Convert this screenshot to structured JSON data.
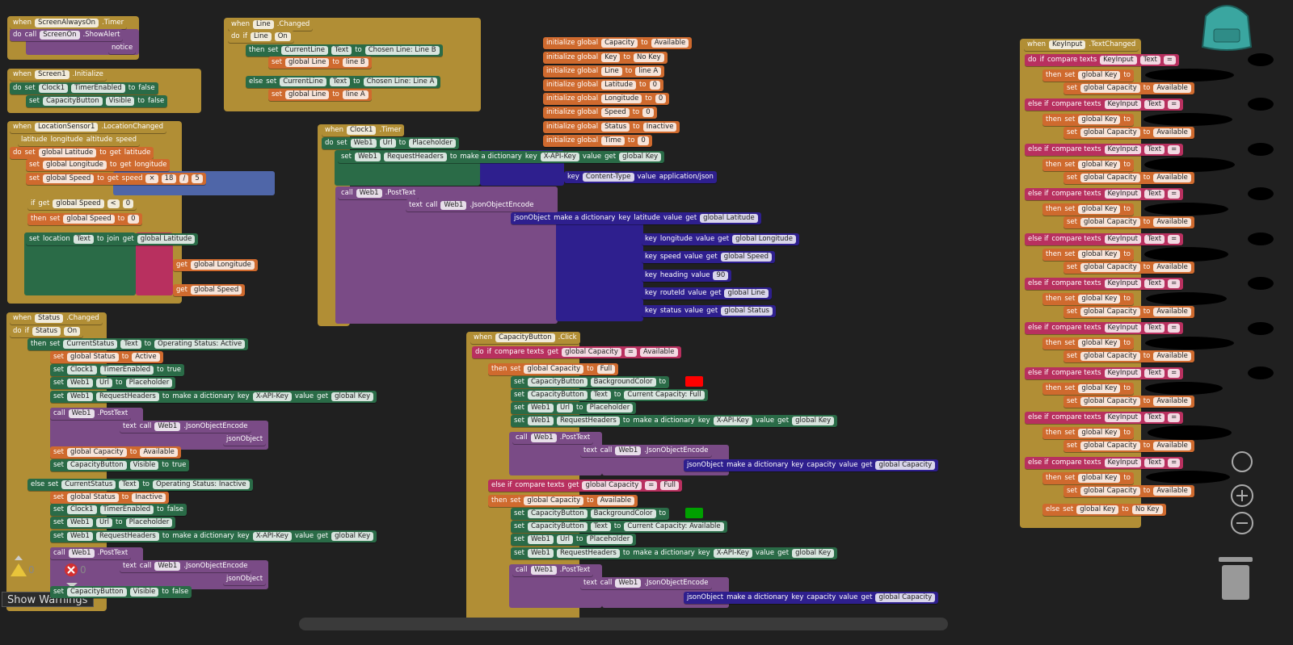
{
  "workspace": {
    "blocks": [
      {
        "lines": [
          [
            "when",
            "ScreenAlwaysOn",
            ".Timer"
          ],
          [
            "do",
            "call",
            "ScreenOn",
            ".ShowAlert"
          ],
          [
            "notice"
          ]
        ]
      },
      {
        "lines": [
          [
            "when",
            "Screen1",
            ".Initialize"
          ],
          [
            "do",
            "set",
            "Clock1",
            "TimerEnabled",
            "to",
            "false"
          ],
          [
            "set",
            "CapacityButton",
            "Visible",
            "to",
            "false"
          ]
        ]
      },
      {
        "lines": [
          [
            "when",
            "LocationSensor1",
            ".LocationChanged"
          ],
          [
            "latitude",
            "longitude",
            "altitude",
            "speed"
          ],
          [
            "do",
            "set",
            "global Latitude",
            "to",
            "get",
            "latitude"
          ],
          [
            "set",
            "global Longitude",
            "to",
            "get",
            "longitude"
          ],
          [
            "set",
            "global Speed",
            "to",
            "get",
            "speed",
            "×",
            "18",
            "/",
            "5"
          ],
          [
            "if",
            "get",
            "global Speed",
            "<",
            "0"
          ],
          [
            "then",
            "set",
            "global Speed",
            "to",
            "0"
          ],
          [
            "set",
            "location",
            "Text",
            "to",
            "join",
            "get",
            "global Latitude"
          ],
          [
            "get",
            "global Longitude"
          ],
          [
            "get",
            "global Speed"
          ]
        ]
      },
      {
        "lines": [
          [
            "when",
            "Status",
            ".Changed"
          ],
          [
            "do",
            "if",
            "Status",
            "On"
          ],
          [
            "then",
            "set",
            "CurrentStatus",
            "Text",
            "to",
            "Operating Status: Active"
          ],
          [
            "set",
            "global Status",
            "to",
            "Active"
          ],
          [
            "set",
            "Clock1",
            "TimerEnabled",
            "to",
            "true"
          ],
          [
            "set",
            "Web1",
            "Url",
            "to",
            "Placeholder"
          ],
          [
            "set",
            "Web1",
            "RequestHeaders",
            "to",
            "make a dictionary",
            "key",
            "X-API-Key",
            "value",
            "get",
            "global Key"
          ],
          [
            "call",
            "Web1",
            ".PostText"
          ],
          [
            "text",
            "call",
            "Web1",
            ".JsonObjectEncode"
          ],
          [
            "jsonObject"
          ],
          [
            "set",
            "global Capacity",
            "to",
            "Available"
          ],
          [
            "set",
            "CapacityButton",
            "Visible",
            "to",
            "true"
          ],
          [
            "else",
            "set",
            "CurrentStatus",
            "Text",
            "to",
            "Operating Status: Inactive"
          ],
          [
            "set",
            "global Status",
            "to",
            "Inactive"
          ],
          [
            "set",
            "Clock1",
            "TimerEnabled",
            "to",
            "false"
          ],
          [
            "set",
            "Web1",
            "Url",
            "to",
            "Placeholder"
          ],
          [
            "set",
            "Web1",
            "RequestHeaders",
            "to",
            "make a dictionary",
            "key",
            "X-API-Key",
            "value",
            "get",
            "global Key"
          ],
          [
            "call",
            "Web1",
            ".PostText"
          ],
          [
            "text",
            "call",
            "Web1",
            ".JsonObjectEncode"
          ],
          [
            "jsonObject"
          ],
          [
            "set",
            "CapacityButton",
            "Visible",
            "to",
            "false"
          ]
        ]
      },
      {
        "lines": [
          [
            "when",
            "Line",
            ".Changed"
          ],
          [
            "do",
            "if",
            "Line",
            "On"
          ],
          [
            "then",
            "set",
            "CurrentLine",
            "Text",
            "to",
            "Chosen Line: Line B"
          ],
          [
            "set",
            "global Line",
            "to",
            "line B"
          ],
          [
            "else",
            "set",
            "CurrentLine",
            "Text",
            "to",
            "Chosen Line: Line A"
          ],
          [
            "set",
            "global Line",
            "to",
            "line A"
          ]
        ]
      },
      {
        "lines": [
          [
            "initialize global",
            "Capacity",
            "to",
            "Available"
          ],
          [
            "initialize global",
            "Key",
            "to",
            "No Key"
          ],
          [
            "initialize global",
            "Line",
            "to",
            "line A"
          ],
          [
            "initialize global",
            "Latitude",
            "to",
            "0"
          ],
          [
            "initialize global",
            "Longitude",
            "to",
            "0"
          ],
          [
            "initialize global",
            "Speed",
            "to",
            "0"
          ],
          [
            "initialize global",
            "Status",
            "to",
            "Inactive"
          ],
          [
            "initialize global",
            "Time",
            "to",
            "0"
          ]
        ]
      },
      {
        "lines": [
          [
            "when",
            "Clock1",
            ".Timer"
          ],
          [
            "do",
            "set",
            "Web1",
            "Url",
            "to",
            "Placeholder"
          ],
          [
            "set",
            "Web1",
            "RequestHeaders",
            "to",
            "make a dictionary",
            "key",
            "X-API-Key",
            "value",
            "get",
            "global Key"
          ],
          [
            "key",
            "Content-Type",
            "value",
            "application/json"
          ],
          [
            "call",
            "Web1",
            ".PostText"
          ],
          [
            "text",
            "call",
            "Web1",
            ".JsonObjectEncode"
          ],
          [
            "jsonObject",
            "make a dictionary",
            "key",
            "latitude",
            "value",
            "get",
            "global Latitude"
          ],
          [
            "key",
            "longitude",
            "value",
            "get",
            "global Longitude"
          ],
          [
            "key",
            "speed",
            "value",
            "get",
            "global Speed"
          ],
          [
            "key",
            "heading",
            "value",
            "90"
          ],
          [
            "key",
            "routeId",
            "value",
            "get",
            "global Line"
          ],
          [
            "key",
            "status",
            "value",
            "get",
            "global Status"
          ]
        ]
      },
      {
        "lines": [
          [
            "when",
            "CapacityButton",
            ".Click"
          ],
          [
            "do",
            "if",
            "compare texts",
            "get",
            "global Capacity",
            "=",
            "Available"
          ],
          [
            "then",
            "set",
            "global Capacity",
            "to",
            "Full"
          ],
          [
            "set",
            "CapacityButton",
            "BackgroundColor",
            "to"
          ],
          [
            "set",
            "CapacityButton",
            "Text",
            "to",
            "Current Capacity: Full"
          ],
          [
            "set",
            "Web1",
            "Url",
            "to",
            "Placeholder"
          ],
          [
            "set",
            "Web1",
            "RequestHeaders",
            "to",
            "make a dictionary",
            "key",
            "X-API-Key",
            "value",
            "get",
            "global Key"
          ],
          [
            "call",
            "Web1",
            ".PostText"
          ],
          [
            "text",
            "call",
            "Web1",
            ".JsonObjectEncode"
          ],
          [
            "jsonObject",
            "make a dictionary",
            "key",
            "capacity",
            "value",
            "get",
            "global Capacity"
          ],
          [
            "else if",
            "compare texts",
            "get",
            "global Capacity",
            "=",
            "Full"
          ],
          [
            "then",
            "set",
            "global Capacity",
            "to",
            "Available"
          ],
          [
            "set",
            "CapacityButton",
            "BackgroundColor",
            "to"
          ],
          [
            "set",
            "CapacityButton",
            "Text",
            "to",
            "Current Capacity: Available"
          ],
          [
            "set",
            "Web1",
            "Url",
            "to",
            "Placeholder"
          ],
          [
            "set",
            "Web1",
            "RequestHeaders",
            "to",
            "make a dictionary",
            "key",
            "X-API-Key",
            "value",
            "get",
            "global Key"
          ],
          [
            "call",
            "Web1",
            ".PostText"
          ],
          [
            "text",
            "call",
            "Web1",
            ".JsonObjectEncode"
          ],
          [
            "jsonObject",
            "make a dictionary",
            "key",
            "capacity",
            "value",
            "get",
            "global Capacity"
          ]
        ]
      },
      {
        "lines": [
          [
            "when",
            "KeyInput",
            ".TextChanged"
          ],
          [
            "do",
            "if",
            "compare texts",
            "KeyInput",
            "Text",
            "="
          ],
          [
            "then",
            "set",
            "global Key",
            "to"
          ],
          [
            "set",
            "global Capacity",
            "to",
            "Available"
          ],
          [
            "else if",
            "compare texts",
            "KeyInput",
            "Text",
            "="
          ],
          [
            "then",
            "set",
            "global Key",
            "to"
          ],
          [
            "set",
            "global Capacity",
            "to",
            "Available"
          ],
          [
            "else if",
            "compare texts",
            "KeyInput",
            "Text",
            "="
          ],
          [
            "then",
            "set",
            "global Key",
            "to"
          ],
          [
            "set",
            "global Capacity",
            "to",
            "Available"
          ],
          [
            "else if",
            "compare texts",
            "KeyInput",
            "Text",
            "="
          ],
          [
            "then",
            "set",
            "global Key",
            "to"
          ],
          [
            "set",
            "global Capacity",
            "to",
            "Available"
          ],
          [
            "else if",
            "compare texts",
            "KeyInput",
            "Text",
            "="
          ],
          [
            "then",
            "set",
            "global Key",
            "to"
          ],
          [
            "set",
            "global Capacity",
            "to",
            "Available"
          ],
          [
            "else if",
            "compare texts",
            "KeyInput",
            "Text",
            "="
          ],
          [
            "then",
            "set",
            "global Key",
            "to"
          ],
          [
            "set",
            "global Capacity",
            "to",
            "Available"
          ],
          [
            "else if",
            "compare texts",
            "KeyInput",
            "Text",
            "="
          ],
          [
            "then",
            "set",
            "global Key",
            "to"
          ],
          [
            "set",
            "global Capacity",
            "to",
            "Available"
          ],
          [
            "else if",
            "compare texts",
            "KeyInput",
            "Text",
            "="
          ],
          [
            "then",
            "set",
            "global Key",
            "to"
          ],
          [
            "set",
            "global Capacity",
            "to",
            "Available"
          ],
          [
            "else if",
            "compare texts",
            "KeyInput",
            "Text",
            "="
          ],
          [
            "then",
            "set",
            "global Key",
            "to"
          ],
          [
            "set",
            "global Capacity",
            "to",
            "Available"
          ],
          [
            "else if",
            "compare texts",
            "KeyInput",
            "Text",
            "="
          ],
          [
            "then",
            "set",
            "global Key",
            "to"
          ],
          [
            "set",
            "global Capacity",
            "to",
            "Available"
          ],
          [
            "else",
            "set",
            "global Key",
            "to",
            "No Key"
          ]
        ]
      }
    ]
  },
  "controls": {
    "show_warnings": "Show Warnings",
    "warning_count": 0,
    "error_count": 0
  }
}
